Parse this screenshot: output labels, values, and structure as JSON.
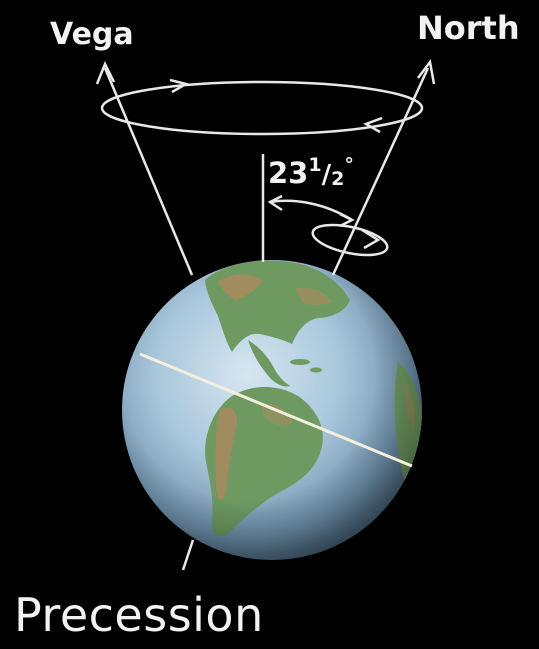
{
  "labels": {
    "vega": "Vega",
    "north": "North",
    "angle_whole": "23",
    "angle_num": "1",
    "angle_slash": "/",
    "angle_den": "2",
    "angle_degree": "°",
    "title": "Precession"
  },
  "colors": {
    "background": "#000000",
    "line": "#e8e8e8",
    "ocean": "#9cc0d8",
    "land_green": "#6f9a63",
    "land_brown": "#a8845c"
  }
}
